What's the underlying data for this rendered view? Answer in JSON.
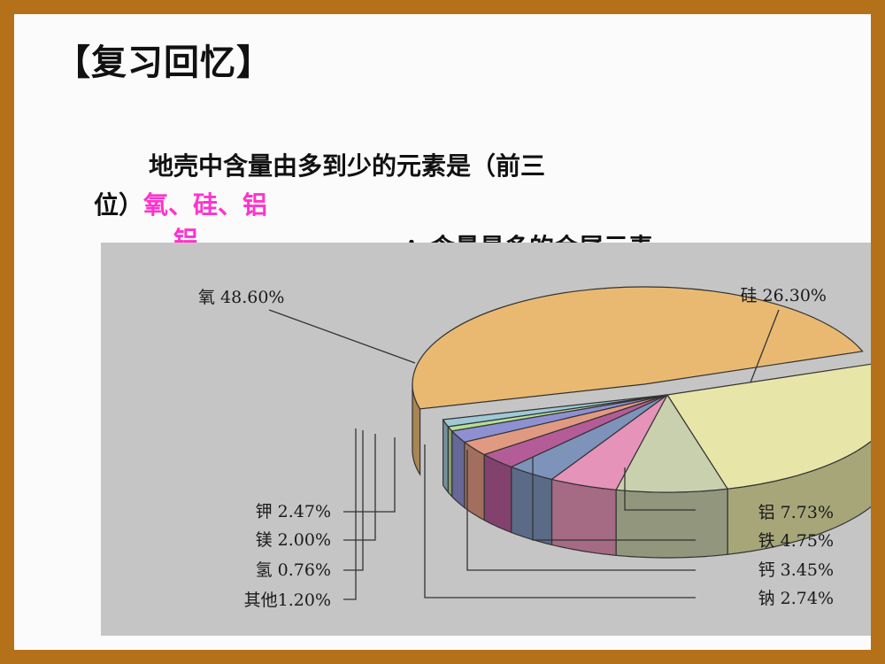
{
  "slide": {
    "title": "【复习回忆】",
    "question_line1": "地壳中含量由多到少的元素是（前三",
    "question_line2_prefix": "位）",
    "answer1": "氧、硅、铝",
    "answer2": "铝",
    "question_line3_suffix": "；含量最多的金属元素",
    "answer_color": "#ff33cc"
  },
  "chart_data": {
    "type": "pie",
    "style": "3d-exploded",
    "slices": [
      {
        "name": "氧",
        "value": 48.6,
        "label": "氧 48.60%",
        "color": "#e9b972"
      },
      {
        "name": "硅",
        "value": 26.3,
        "label": "硅 26.30%",
        "color": "#e7e6a8"
      },
      {
        "name": "铝",
        "value": 7.73,
        "label": "铝 7.73%",
        "color": "#c9d0ae"
      },
      {
        "name": "铁",
        "value": 4.75,
        "label": "铁 4.75%",
        "color": "#e593b8"
      },
      {
        "name": "钙",
        "value": 3.45,
        "label": "钙 3.45%",
        "color": "#7e93ba"
      },
      {
        "name": "钠",
        "value": 2.74,
        "label": "钠 2.74%",
        "color": "#b45c98"
      },
      {
        "name": "钾",
        "value": 2.47,
        "label": "钾 2.47%",
        "color": "#e19a82"
      },
      {
        "name": "镁",
        "value": 2.0,
        "label": "镁 2.00%",
        "color": "#8d91d2"
      },
      {
        "name": "氢",
        "value": 0.76,
        "label": "氢 0.76%",
        "color": "#b6dd97"
      },
      {
        "name": "其他",
        "value": 1.2,
        "label": "其他1.20%",
        "color": "#9fc9d6"
      }
    ]
  }
}
